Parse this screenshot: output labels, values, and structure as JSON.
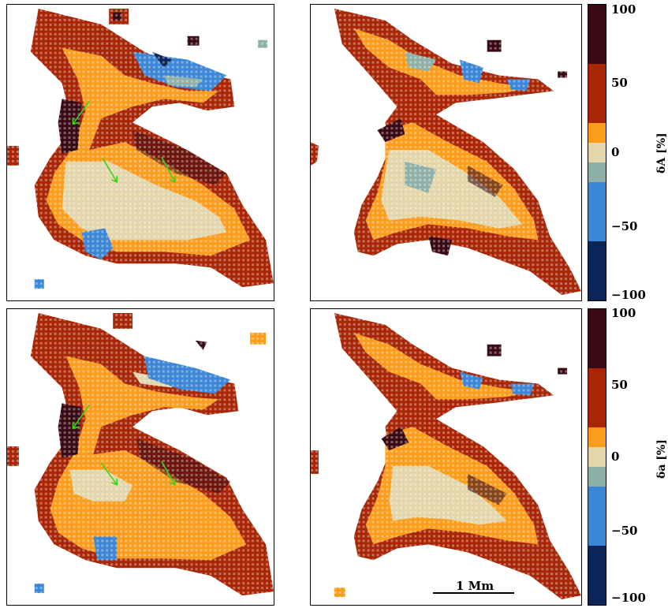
{
  "colorbars": [
    {
      "label": "δA [%]",
      "ticks": [
        "100",
        "50",
        "0",
        "−50",
        "−100"
      ],
      "segments": [
        "#3a0a14",
        "#a82606",
        "#fb9c1c",
        "#e2d6aa",
        "#8fb0a8",
        "#3b86d6",
        "#0c2458"
      ]
    },
    {
      "label": "δa [%]",
      "ticks": [
        "100",
        "50",
        "0",
        "−50",
        "−100"
      ],
      "segments": [
        "#3a0a14",
        "#a82606",
        "#fb9c1c",
        "#e2d6aa",
        "#8fb0a8",
        "#3b86d6",
        "#0c2458"
      ]
    }
  ],
  "scale_bar": {
    "label": "1 Mm"
  },
  "colors": {
    "arrow": "#3cd21c",
    "dark": "#3a0a14",
    "red": "#a82606",
    "orange": "#fb9c1c",
    "beige": "#e2d6aa",
    "grey": "#8fb0a8",
    "blue": "#3b86d6",
    "navy": "#0c2458"
  },
  "panels": [
    "top-left",
    "top-right",
    "bottom-left",
    "bottom-right"
  ]
}
